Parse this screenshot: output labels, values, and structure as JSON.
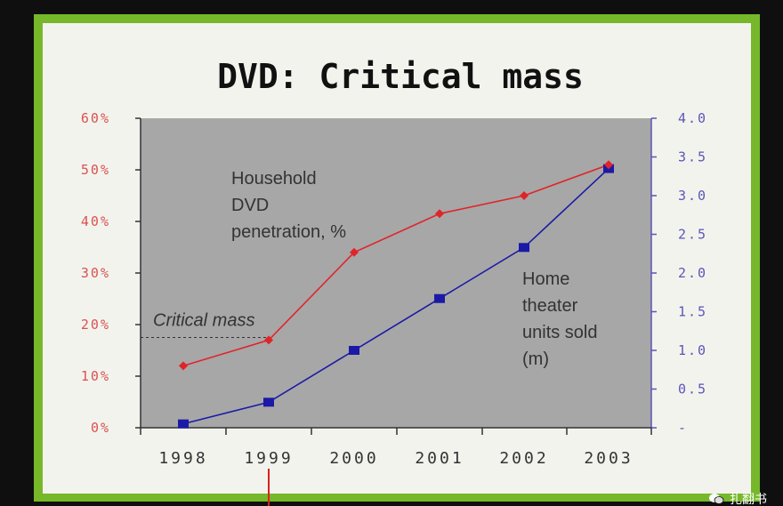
{
  "slide": {
    "title": "DVD: Critical mass"
  },
  "watermark": {
    "icon": "wechat-icon",
    "text": "扎翻书"
  },
  "chart_data": {
    "type": "line",
    "title": "DVD: Critical mass",
    "categories": [
      "1998",
      "1999",
      "2000",
      "2001",
      "2002",
      "2003"
    ],
    "y_left": {
      "ticks": [
        "0%",
        "10%",
        "20%",
        "30%",
        "40%",
        "50%",
        "60%"
      ],
      "range": [
        0,
        60
      ]
    },
    "y_right": {
      "ticks": [
        "-",
        "0.5",
        "1.0",
        "1.5",
        "2.0",
        "2.5",
        "3.0",
        "3.5",
        "4.0"
      ],
      "range": [
        0,
        4
      ]
    },
    "series": [
      {
        "axis": "left",
        "color": "#e0242a",
        "values": [
          12,
          17,
          34,
          41.5,
          45,
          51
        ],
        "label": [
          "Household",
          "DVD",
          "penetration, %"
        ]
      },
      {
        "axis": "right",
        "color": "#1a1aa6",
        "values": [
          0.05,
          0.33,
          1.0,
          1.67,
          2.33,
          3.35
        ],
        "label": [
          "Home",
          "theater",
          "units sold",
          "(m)"
        ]
      }
    ],
    "annotation": {
      "text": "Critical mass",
      "value": 17.5
    },
    "colors": {
      "plot_background": "#a7a7a7",
      "left_axis": "#d9534f",
      "right_axis": "#5b55b8"
    }
  }
}
